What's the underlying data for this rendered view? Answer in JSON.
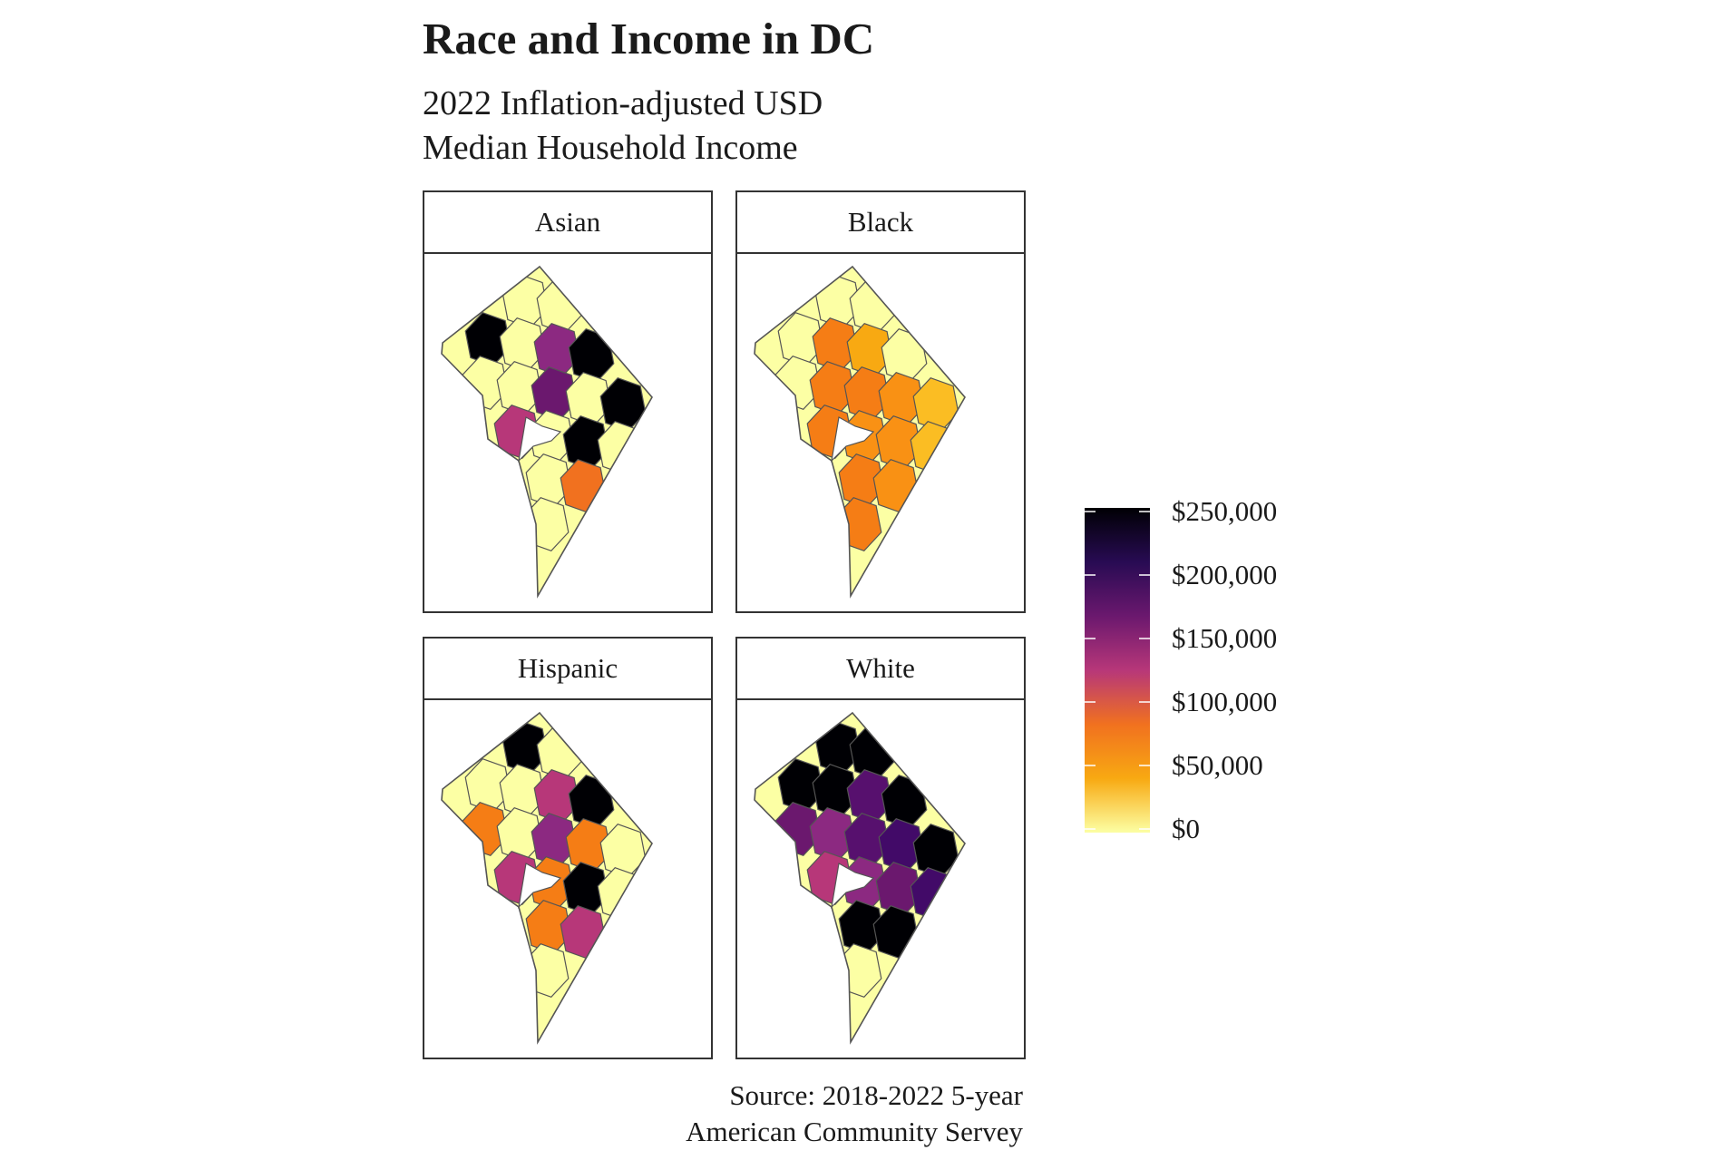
{
  "title": "Race and Income in DC",
  "subtitle": [
    "2022 Inflation-adjusted USD",
    "Median Household Income"
  ],
  "caption": [
    "Source: 2018-2022 5-year",
    "American Community Servey"
  ],
  "panels": [
    {
      "label": "Asian",
      "fills": [
        "#fcffa4",
        "#fcffa4",
        "#000004",
        "#fcffa4",
        "#8c2981",
        "#000004",
        "#fcffa4",
        "#fcffa4",
        "#6b186e",
        "#fcffa4",
        "#000004",
        "#b73779",
        "#fcffa4",
        "#000004",
        "#fcffa4",
        "#fcffa4",
        "#f1711f",
        "#fcffa4",
        "#fcffa4",
        "#fcffa4",
        "#fcffa4",
        "#000004",
        "#fcffa4",
        "#fcffa4",
        "#fcffa4",
        "#6b186e",
        "#fcffa4",
        "#fcffa4",
        "#fcffa4"
      ]
    },
    {
      "label": "Black",
      "fills": [
        "#fcffa4",
        "#fcffa4",
        "#fcffa4",
        "#f57d15",
        "#f8a912",
        "#fcffa4",
        "#fcffa4",
        "#f57d15",
        "#f57d15",
        "#f99114",
        "#fbbd23",
        "#f57d15",
        "#f99114",
        "#f99114",
        "#fbbd23",
        "#f57d15",
        "#f99114",
        "#f57d15",
        "#f99114",
        "#fbbd23",
        "#f99114",
        "#f8a912",
        "#fcd846",
        "#f57d15",
        "#f57d15",
        "#f57d15",
        "#f8a912",
        "#fbbd23",
        "#fbbd23"
      ]
    },
    {
      "label": "Hispanic",
      "fills": [
        "#000004",
        "#fcffa4",
        "#fcffa4",
        "#fcffa4",
        "#b73779",
        "#000004",
        "#f57d15",
        "#fcffa4",
        "#8c2981",
        "#f57d15",
        "#fcffa4",
        "#b73779",
        "#f57d15",
        "#000004",
        "#fcffa4",
        "#f57d15",
        "#b73779",
        "#fcffa4",
        "#fcffa4",
        "#fcffa4",
        "#fcffa4",
        "#fcffa4",
        "#fcffa4",
        "#fcffa4",
        "#fcffa4",
        "#fcffa4",
        "#fcffa4",
        "#fcffa4",
        "#fcffa4"
      ]
    },
    {
      "label": "White",
      "fills": [
        "#000004",
        "#000004",
        "#000004",
        "#000004",
        "#57106e",
        "#000004",
        "#6b186e",
        "#8c2981",
        "#57106e",
        "#420a68",
        "#000004",
        "#b73779",
        "#8c2981",
        "#6b186e",
        "#420a68",
        "#000004",
        "#000004",
        "#fcffa4",
        "#8c2981",
        "#57106e",
        "#fcffa4",
        "#fcffa4",
        "#fcffa4",
        "#b73779",
        "#8c2981",
        "#f99114",
        "#fcffa4",
        "#fcffa4",
        "#fcffa4"
      ]
    }
  ],
  "legend": {
    "labels": [
      "$250,000",
      "$200,000",
      "$150,000",
      "$100,000",
      "$50,000",
      "$0"
    ],
    "values": [
      250000,
      200000,
      150000,
      100000,
      50000,
      0
    ],
    "min": 0,
    "max": 250000,
    "colors": [
      "#fcffa4",
      "#f8a912",
      "#f1711f",
      "#b73779",
      "#6b186e",
      "#280b53",
      "#000004"
    ]
  }
}
